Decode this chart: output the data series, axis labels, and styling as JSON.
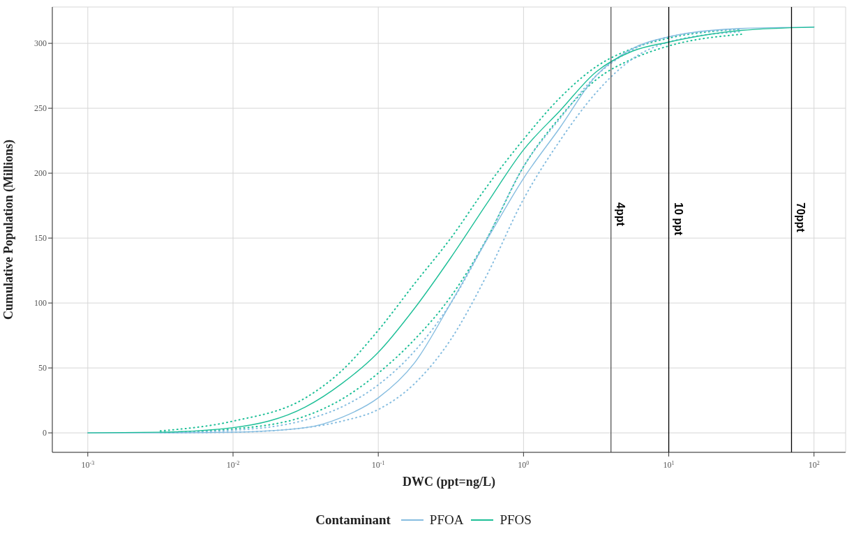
{
  "chart_data": {
    "type": "line",
    "xlabel": "DWC (ppt=ng/L)",
    "ylabel": "Cumulative Population (Millions)",
    "legend_title": "Contaminant",
    "legend": "bottom",
    "grid": true,
    "log": "x",
    "x": [
      0.001,
      0.00316,
      0.01,
      0.0316,
      0.0562,
      0.1,
      0.178,
      0.316,
      0.562,
      1,
      1.78,
      3.16,
      5.62,
      10,
      31.6,
      100
    ],
    "xlim": [
      0.00057,
      165
    ],
    "xticks": [
      {
        "value": 0.001,
        "label": "10$^{-3}$"
      },
      {
        "value": 0.01,
        "label": "10$^{-2}$"
      },
      {
        "value": 0.1,
        "label": "10$^{-1}$"
      },
      {
        "value": 1,
        "label": "10$^{0}$"
      },
      {
        "value": 10,
        "label": "10$^{1}$"
      },
      {
        "value": 100,
        "label": "10$^{2}$"
      }
    ],
    "ylim": [
      -15,
      328
    ],
    "yticks": [
      0,
      50,
      100,
      150,
      200,
      250,
      300
    ],
    "series": [
      {
        "color": "#1dbf97",
        "line_style": "dotted",
        "values": [
          null,
          1.5,
          9,
          27,
          48,
          79,
          115,
          150,
          190,
          226,
          258,
          282,
          296,
          304,
          311,
          null
        ]
      },
      {
        "color": "#1dbf97",
        "line_style": "dotted",
        "values": [
          null,
          0.3,
          3,
          13,
          26,
          46,
          72,
          105,
          150,
          205,
          243,
          272,
          288,
          298,
          307,
          null
        ]
      },
      {
        "color": "#86bde0",
        "line_style": "dotted",
        "values": [
          null,
          0.2,
          2,
          10,
          20,
          37,
          63,
          100,
          150,
          205,
          242,
          275,
          295,
          305,
          311,
          null
        ]
      },
      {
        "color": "#86bde0",
        "line_style": "dotted",
        "values": [
          null,
          0,
          0.5,
          4,
          9,
          18,
          38,
          72,
          122,
          180,
          225,
          262,
          288,
          301,
          309,
          null
        ]
      },
      {
        "name": "PFOA",
        "color": "#86bde0",
        "line_style": "solid",
        "values": [
          0,
          0,
          0.5,
          4,
          12,
          27,
          54,
          100,
          149,
          196,
          235,
          275,
          296,
          305,
          311.5,
          312.5
        ]
      },
      {
        "name": "PFOS",
        "color": "#1dbf97",
        "line_style": "solid",
        "values": [
          0,
          0.5,
          4,
          20,
          38,
          62,
          96,
          135,
          177,
          218,
          248,
          278,
          294,
          301,
          310,
          312.5
        ]
      }
    ],
    "ref_lines": [
      {
        "axis": "x",
        "value": 4,
        "label": "4ppt",
        "color": "#555555"
      },
      {
        "axis": "x",
        "value": 10,
        "label": "10 ppt",
        "color": "#000000"
      },
      {
        "axis": "x",
        "value": 70,
        "label": "70ppt",
        "color": "#000000"
      }
    ]
  }
}
